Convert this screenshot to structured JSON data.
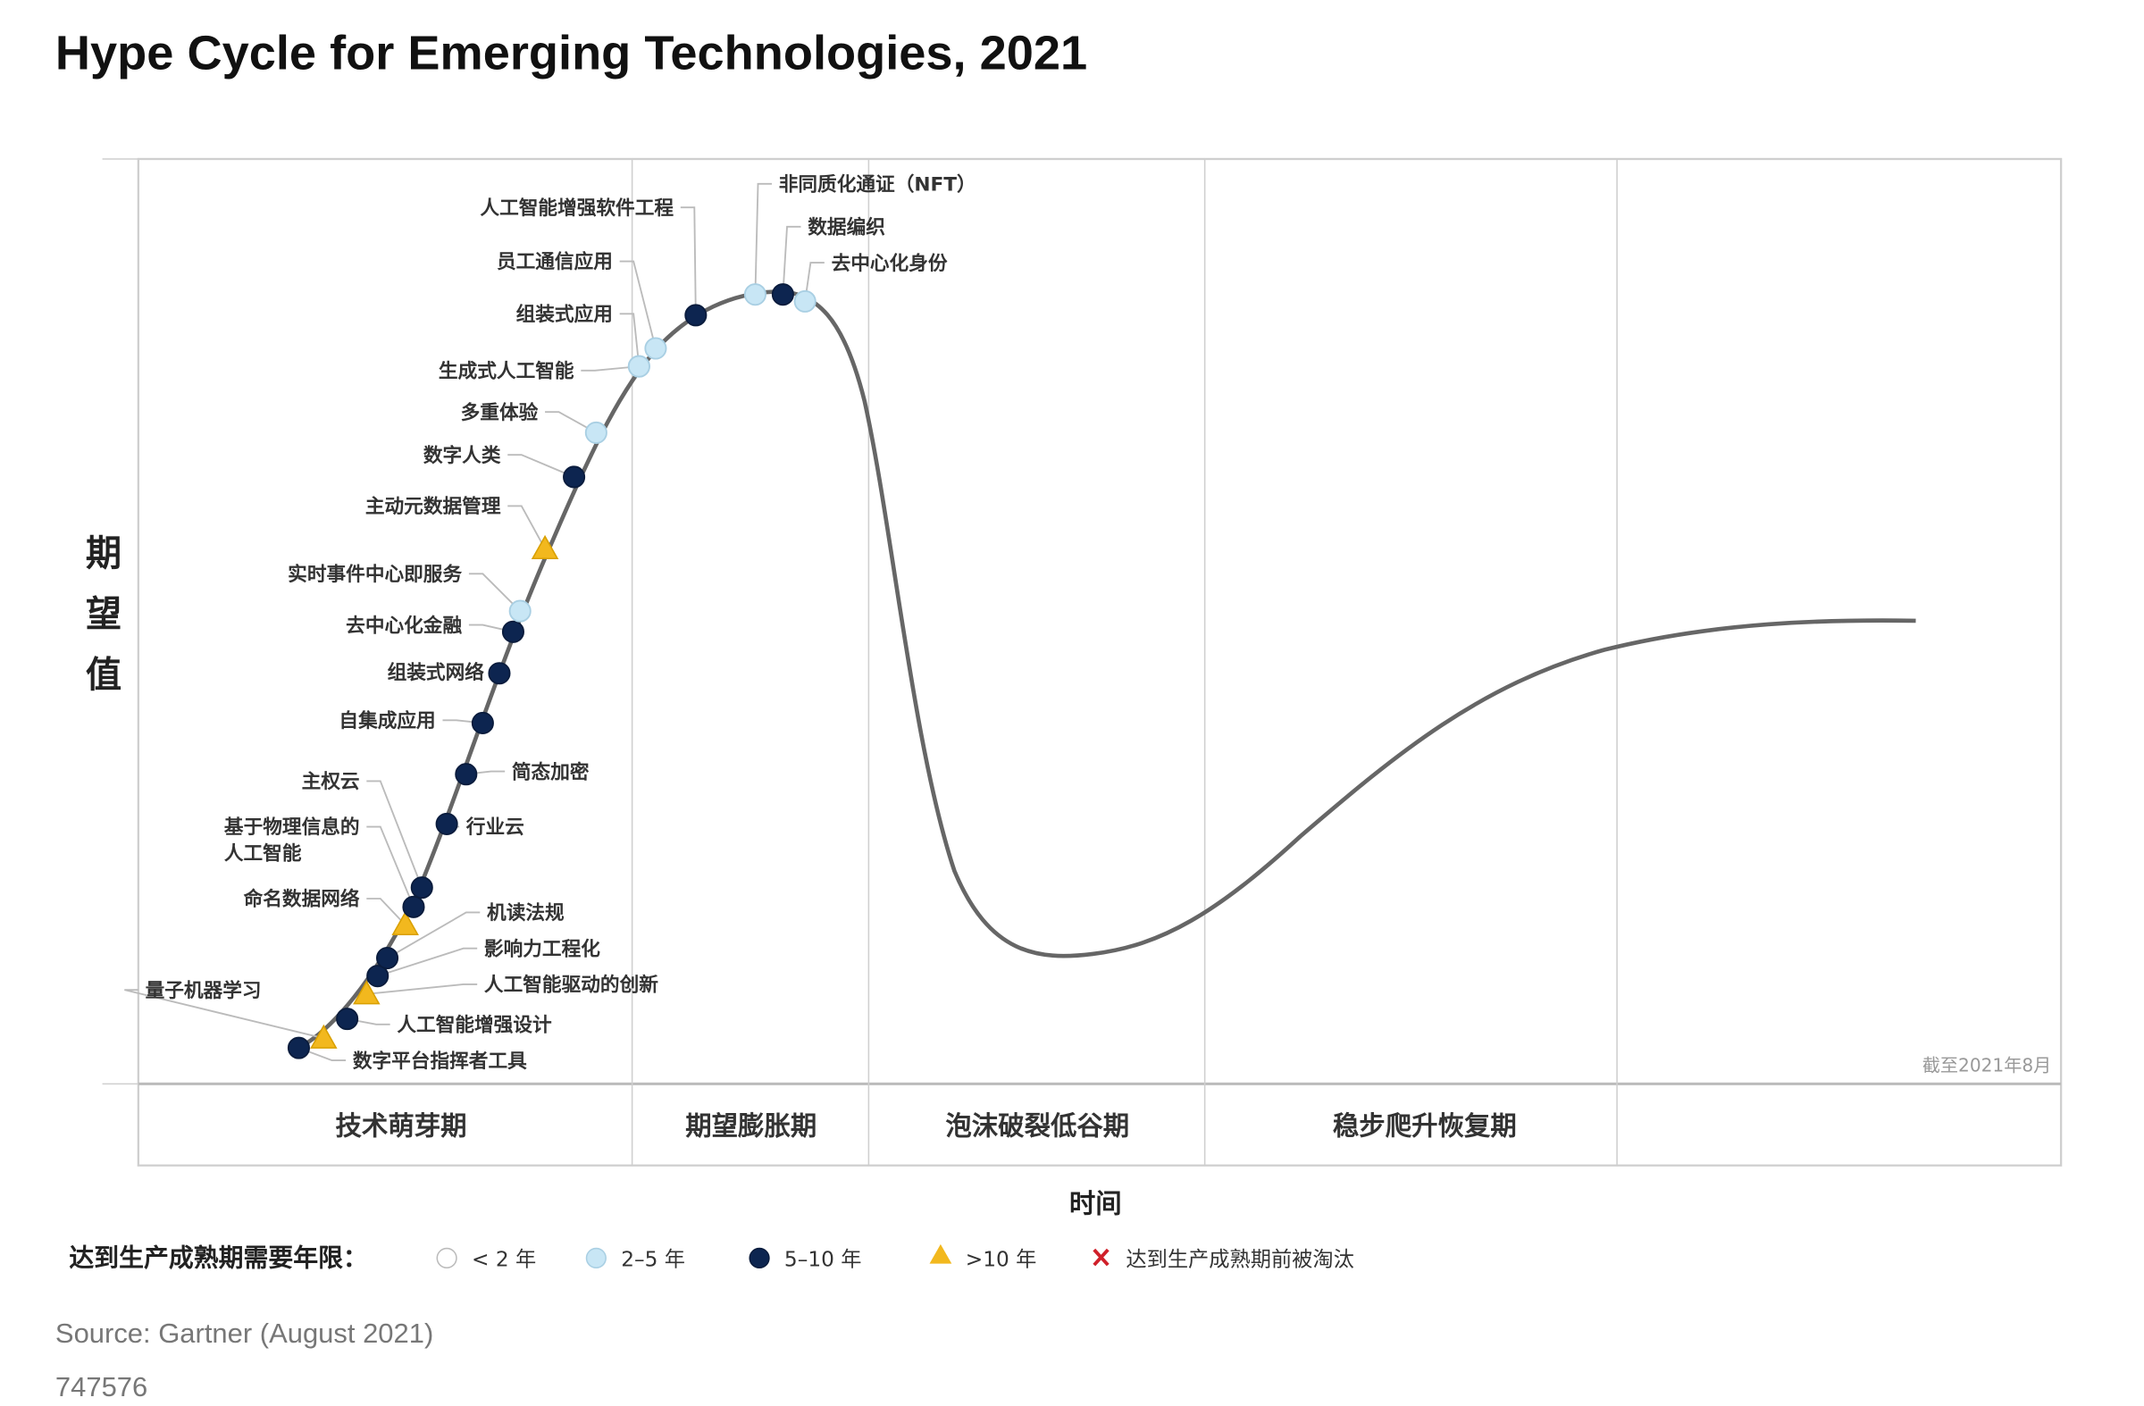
{
  "chart_data": {
    "type": "scatter",
    "title": "Hype Cycle for Emerging Technologies, 2021",
    "ylabel": "期望值",
    "xlabel": "时间",
    "as_of": "截至2021年8月",
    "phases": [
      "技术萌芽期",
      "期望膨胀期",
      "泡沫破裂低谷期",
      "稳步爬升恢复期",
      ""
    ],
    "legend": {
      "title": "达到生产成熟期需要年限：",
      "items": [
        {
          "key": "lt2",
          "label": "< 2 年",
          "color": "#ffffff"
        },
        {
          "key": "2to5",
          "label": "2–5 年",
          "color": "#c8e6f5"
        },
        {
          "key": "5to10",
          "label": "5–10 年",
          "color": "#0d2550"
        },
        {
          "key": "gt10",
          "label": ">10 年",
          "color": "#f2b81e"
        },
        {
          "key": "obsolete",
          "label": "达到生产成熟期前被淘汰",
          "color": "#d0202a"
        }
      ]
    },
    "points": [
      {
        "name": "数字平台指挥者工具",
        "maturity": "5to10",
        "phase": "技术萌芽期"
      },
      {
        "name": "量子机器学习",
        "maturity": "gt10",
        "phase": "技术萌芽期"
      },
      {
        "name": "人工智能增强设计",
        "maturity": "5to10",
        "phase": "技术萌芽期"
      },
      {
        "name": "人工智能驱动的创新",
        "maturity": "gt10",
        "phase": "技术萌芽期"
      },
      {
        "name": "影响力工程化",
        "maturity": "5to10",
        "phase": "技术萌芽期"
      },
      {
        "name": "机读法规",
        "maturity": "5to10",
        "phase": "技术萌芽期"
      },
      {
        "name": "命名数据网络",
        "maturity": "gt10",
        "phase": "技术萌芽期"
      },
      {
        "name": "基于物理信息的",
        "name2": "人工智能",
        "maturity": "5to10",
        "phase": "技术萌芽期"
      },
      {
        "name": "主权云",
        "maturity": "5to10",
        "phase": "技术萌芽期"
      },
      {
        "name": "行业云",
        "maturity": "5to10",
        "phase": "技术萌芽期"
      },
      {
        "name": "简态加密",
        "maturity": "5to10",
        "phase": "技术萌芽期"
      },
      {
        "name": "自集成应用",
        "maturity": "5to10",
        "phase": "技术萌芽期"
      },
      {
        "name": "组装式网络",
        "maturity": "5to10",
        "phase": "技术萌芽期"
      },
      {
        "name": "去中心化金融",
        "maturity": "5to10",
        "phase": "技术萌芽期"
      },
      {
        "name": "实时事件中心即服务",
        "maturity": "2to5",
        "phase": "技术萌芽期"
      },
      {
        "name": "主动元数据管理",
        "maturity": "gt10",
        "phase": "技术萌芽期"
      },
      {
        "name": "数字人类",
        "maturity": "5to10",
        "phase": "技术萌芽期"
      },
      {
        "name": "多重体验",
        "maturity": "2to5",
        "phase": "技术萌芽期"
      },
      {
        "name": "生成式人工智能",
        "maturity": "2to5",
        "phase": "技术萌芽期"
      },
      {
        "name": "组装式应用",
        "maturity": "2to5",
        "phase": "期望膨胀期"
      },
      {
        "name": "员工通信应用",
        "maturity": "2to5",
        "phase": "期望膨胀期"
      },
      {
        "name": "人工智能增强软件工程",
        "maturity": "5to10",
        "phase": "期望膨胀期"
      },
      {
        "name": "非同质化通证（NFT）",
        "maturity": "2to5",
        "phase": "期望膨胀期"
      },
      {
        "name": "数据编织",
        "maturity": "5to10",
        "phase": "期望膨胀期"
      },
      {
        "name": "去中心化身份",
        "maturity": "2to5",
        "phase": "期望膨胀期"
      }
    ]
  },
  "footer": {
    "source": "Source: Gartner (August 2021)",
    "id": "747576"
  }
}
